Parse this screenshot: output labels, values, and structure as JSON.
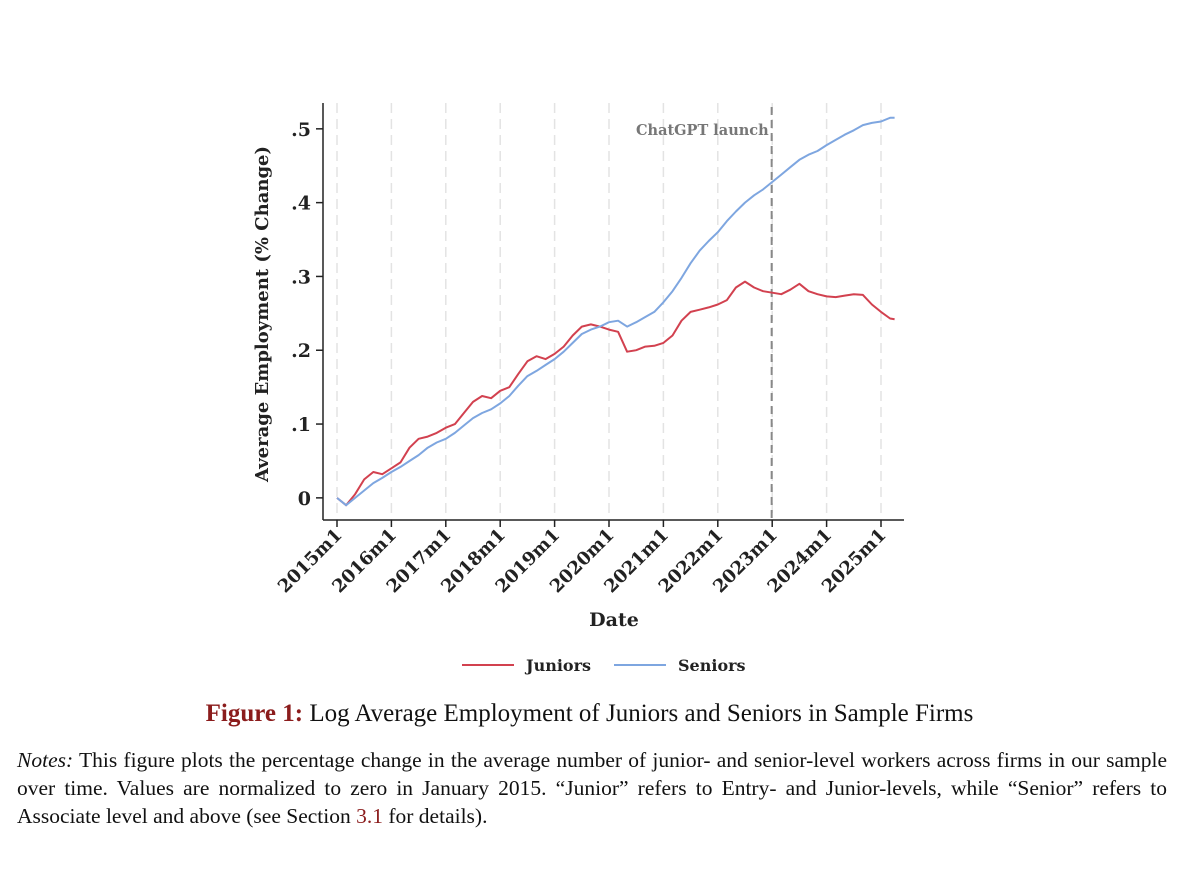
{
  "chart_data": {
    "type": "line",
    "xlabel": "Date",
    "ylabel": "Average Employment (% Change)",
    "x_ticks": [
      "2015m1",
      "2016m1",
      "2017m1",
      "2018m1",
      "2019m1",
      "2020m1",
      "2021m1",
      "2022m1",
      "2023m1",
      "2024m1",
      "2025m1"
    ],
    "y_ticks": [
      "0",
      ".1",
      ".2",
      ".3",
      ".4",
      ".5"
    ],
    "y_tick_values": [
      0,
      0.1,
      0.2,
      0.3,
      0.4,
      0.5
    ],
    "xlim": [
      "2015-01",
      "2025-04"
    ],
    "ylim": [
      -0.03,
      0.535
    ],
    "grid": "vertical dashed at year ticks",
    "legend_position": "bottom",
    "annotation": {
      "label": "ChatGPT launch",
      "x": "2022-12"
    },
    "series": [
      {
        "name": "Juniors",
        "color": "#d2414f",
        "points": [
          [
            "2015-01",
            0.0
          ],
          [
            "2015-03",
            -0.01
          ],
          [
            "2015-05",
            0.005
          ],
          [
            "2015-07",
            0.025
          ],
          [
            "2015-09",
            0.035
          ],
          [
            "2015-11",
            0.032
          ],
          [
            "2016-01",
            0.04
          ],
          [
            "2016-03",
            0.048
          ],
          [
            "2016-05",
            0.068
          ],
          [
            "2016-07",
            0.08
          ],
          [
            "2016-09",
            0.083
          ],
          [
            "2016-11",
            0.088
          ],
          [
            "2017-01",
            0.095
          ],
          [
            "2017-03",
            0.1
          ],
          [
            "2017-05",
            0.115
          ],
          [
            "2017-07",
            0.13
          ],
          [
            "2017-09",
            0.138
          ],
          [
            "2017-11",
            0.135
          ],
          [
            "2018-01",
            0.145
          ],
          [
            "2018-03",
            0.15
          ],
          [
            "2018-05",
            0.168
          ],
          [
            "2018-07",
            0.185
          ],
          [
            "2018-09",
            0.192
          ],
          [
            "2018-11",
            0.188
          ],
          [
            "2019-01",
            0.195
          ],
          [
            "2019-03",
            0.205
          ],
          [
            "2019-05",
            0.22
          ],
          [
            "2019-07",
            0.232
          ],
          [
            "2019-09",
            0.235
          ],
          [
            "2019-11",
            0.232
          ],
          [
            "2020-01",
            0.228
          ],
          [
            "2020-03",
            0.225
          ],
          [
            "2020-05",
            0.198
          ],
          [
            "2020-07",
            0.2
          ],
          [
            "2020-09",
            0.205
          ],
          [
            "2020-11",
            0.206
          ],
          [
            "2021-01",
            0.21
          ],
          [
            "2021-03",
            0.22
          ],
          [
            "2021-05",
            0.24
          ],
          [
            "2021-07",
            0.252
          ],
          [
            "2021-09",
            0.255
          ],
          [
            "2021-11",
            0.258
          ],
          [
            "2022-01",
            0.262
          ],
          [
            "2022-03",
            0.268
          ],
          [
            "2022-05",
            0.285
          ],
          [
            "2022-07",
            0.293
          ],
          [
            "2022-09",
            0.285
          ],
          [
            "2022-11",
            0.28
          ],
          [
            "2023-01",
            0.278
          ],
          [
            "2023-03",
            0.276
          ],
          [
            "2023-05",
            0.282
          ],
          [
            "2023-07",
            0.29
          ],
          [
            "2023-09",
            0.28
          ],
          [
            "2023-11",
            0.276
          ],
          [
            "2024-01",
            0.273
          ],
          [
            "2024-03",
            0.272
          ],
          [
            "2024-05",
            0.274
          ],
          [
            "2024-07",
            0.276
          ],
          [
            "2024-09",
            0.275
          ],
          [
            "2024-11",
            0.262
          ],
          [
            "2025-01",
            0.252
          ],
          [
            "2025-03",
            0.243
          ],
          [
            "2025-04",
            0.242
          ]
        ]
      },
      {
        "name": "Seniors",
        "color": "#7ea6e0",
        "points": [
          [
            "2015-01",
            0.0
          ],
          [
            "2015-03",
            -0.01
          ],
          [
            "2015-05",
            0.0
          ],
          [
            "2015-07",
            0.01
          ],
          [
            "2015-09",
            0.02
          ],
          [
            "2015-11",
            0.027
          ],
          [
            "2016-01",
            0.035
          ],
          [
            "2016-03",
            0.042
          ],
          [
            "2016-05",
            0.05
          ],
          [
            "2016-07",
            0.058
          ],
          [
            "2016-09",
            0.068
          ],
          [
            "2016-11",
            0.075
          ],
          [
            "2017-01",
            0.08
          ],
          [
            "2017-03",
            0.088
          ],
          [
            "2017-05",
            0.098
          ],
          [
            "2017-07",
            0.108
          ],
          [
            "2017-09",
            0.115
          ],
          [
            "2017-11",
            0.12
          ],
          [
            "2018-01",
            0.128
          ],
          [
            "2018-03",
            0.138
          ],
          [
            "2018-05",
            0.152
          ],
          [
            "2018-07",
            0.165
          ],
          [
            "2018-09",
            0.172
          ],
          [
            "2018-11",
            0.18
          ],
          [
            "2019-01",
            0.188
          ],
          [
            "2019-03",
            0.198
          ],
          [
            "2019-05",
            0.21
          ],
          [
            "2019-07",
            0.222
          ],
          [
            "2019-09",
            0.228
          ],
          [
            "2019-11",
            0.232
          ],
          [
            "2020-01",
            0.238
          ],
          [
            "2020-03",
            0.24
          ],
          [
            "2020-05",
            0.232
          ],
          [
            "2020-07",
            0.238
          ],
          [
            "2020-09",
            0.245
          ],
          [
            "2020-11",
            0.252
          ],
          [
            "2021-01",
            0.265
          ],
          [
            "2021-03",
            0.28
          ],
          [
            "2021-05",
            0.298
          ],
          [
            "2021-07",
            0.318
          ],
          [
            "2021-09",
            0.335
          ],
          [
            "2021-11",
            0.348
          ],
          [
            "2022-01",
            0.36
          ],
          [
            "2022-03",
            0.375
          ],
          [
            "2022-05",
            0.388
          ],
          [
            "2022-07",
            0.4
          ],
          [
            "2022-09",
            0.41
          ],
          [
            "2022-11",
            0.418
          ],
          [
            "2023-01",
            0.428
          ],
          [
            "2023-03",
            0.438
          ],
          [
            "2023-05",
            0.448
          ],
          [
            "2023-07",
            0.458
          ],
          [
            "2023-09",
            0.465
          ],
          [
            "2023-11",
            0.47
          ],
          [
            "2024-01",
            0.478
          ],
          [
            "2024-03",
            0.485
          ],
          [
            "2024-05",
            0.492
          ],
          [
            "2024-07",
            0.498
          ],
          [
            "2024-09",
            0.505
          ],
          [
            "2024-11",
            0.508
          ],
          [
            "2025-01",
            0.51
          ],
          [
            "2025-03",
            0.515
          ],
          [
            "2025-04",
            0.515
          ]
        ]
      }
    ]
  },
  "caption": {
    "label": "Figure 1:",
    "text": "Log Average Employment of Juniors and Seniors in Sample Firms"
  },
  "notes": {
    "label": "Notes:",
    "text_before_ref": "This figure plots the percentage change in the average number of junior- and senior-level workers across firms in our sample over time. Values are normalized to zero in January 2015. “Junior” refers to Entry- and Junior-levels, while “Senior” refers to Associate level and above (see Section ",
    "ref": "3.1",
    "text_after_ref": " for details)."
  }
}
